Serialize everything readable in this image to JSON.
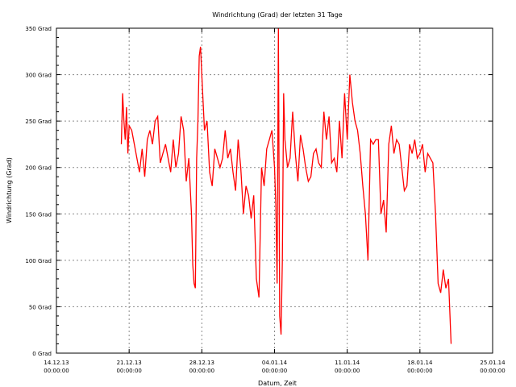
{
  "chart_data": {
    "type": "line",
    "title": "Windrichtung (Grad) der letzten 31 Tage",
    "xlabel": "Datum, Zeit",
    "ylabel": "Windrichtung (Grad)",
    "ylim": [
      0,
      350
    ],
    "xlim": [
      "2013-12-14T00:00",
      "2014-01-25T00:00"
    ],
    "grid": true,
    "yticks": [
      {
        "value": 0,
        "label": "0 Grad"
      },
      {
        "value": 50,
        "label": "50 Grad"
      },
      {
        "value": 100,
        "label": "100 Grad"
      },
      {
        "value": 150,
        "label": "150 Grad"
      },
      {
        "value": 200,
        "label": "200 Grad"
      },
      {
        "value": 250,
        "label": "250 Grad"
      },
      {
        "value": 300,
        "label": "300 Grad"
      },
      {
        "value": 350,
        "label": "350 Grad"
      }
    ],
    "xticks": [
      {
        "value": "2013-12-14T00:00",
        "date": "14.12.13",
        "time": "00:00:00"
      },
      {
        "value": "2013-12-21T00:00",
        "date": "21.12.13",
        "time": "00:00:00"
      },
      {
        "value": "2013-12-28T00:00",
        "date": "28.12.13",
        "time": "00:00:00"
      },
      {
        "value": "2014-01-04T00:00",
        "date": "04.01.14",
        "time": "00:00:00"
      },
      {
        "value": "2014-01-11T00:00",
        "date": "11.01.14",
        "time": "00:00:00"
      },
      {
        "value": "2014-01-18T00:00",
        "date": "18.01.14",
        "time": "00:00:00"
      },
      {
        "value": "2014-01-25T00:00",
        "date": "25.01.14",
        "time": "00:00:00"
      }
    ],
    "series": [
      {
        "color": "#ff0000",
        "x": [
          "2013-12-20T06:00",
          "2013-12-20T09:00",
          "2013-12-20T12:00",
          "2013-12-20T15:00",
          "2013-12-20T18:00",
          "2013-12-20T21:00",
          "2013-12-21T00:00",
          "2013-12-21T06:00",
          "2013-12-21T12:00",
          "2013-12-21T18:00",
          "2013-12-22T00:00",
          "2013-12-22T06:00",
          "2013-12-22T12:00",
          "2013-12-22T18:00",
          "2013-12-23T00:00",
          "2013-12-23T06:00",
          "2013-12-23T12:00",
          "2013-12-23T18:00",
          "2013-12-24T00:00",
          "2013-12-24T06:00",
          "2013-12-24T12:00",
          "2013-12-24T18:00",
          "2013-12-25T00:00",
          "2013-12-25T06:00",
          "2013-12-25T12:00",
          "2013-12-25T18:00",
          "2013-12-26T00:00",
          "2013-12-26T06:00",
          "2013-12-26T12:00",
          "2013-12-26T18:00",
          "2013-12-27T00:00",
          "2013-12-27T03:00",
          "2013-12-27T06:00",
          "2013-12-27T09:00",
          "2013-12-27T12:00",
          "2013-12-27T15:00",
          "2013-12-27T18:00",
          "2013-12-27T21:00",
          "2013-12-28T00:00",
          "2013-12-28T06:00",
          "2013-12-28T12:00",
          "2013-12-28T18:00",
          "2013-12-29T00:00",
          "2013-12-29T06:00",
          "2013-12-29T12:00",
          "2013-12-29T18:00",
          "2013-12-30T00:00",
          "2013-12-30T06:00",
          "2013-12-30T12:00",
          "2013-12-30T18:00",
          "2013-12-31T00:00",
          "2013-12-31T06:00",
          "2013-12-31T12:00",
          "2013-12-31T18:00",
          "2014-01-01T00:00",
          "2014-01-01T06:00",
          "2014-01-01T12:00",
          "2014-01-01T18:00",
          "2014-01-02T00:00",
          "2014-01-02T06:00",
          "2014-01-02T12:00",
          "2014-01-02T18:00",
          "2014-01-03T00:00",
          "2014-01-03T06:00",
          "2014-01-03T12:00",
          "2014-01-03T18:00",
          "2014-01-04T00:00",
          "2014-01-04T03:00",
          "2014-01-04T06:00",
          "2014-01-04T09:00",
          "2014-01-04T12:00",
          "2014-01-04T15:00",
          "2014-01-04T18:00",
          "2014-01-04T21:00",
          "2014-01-05T00:00",
          "2014-01-05T06:00",
          "2014-01-05T12:00",
          "2014-01-05T18:00",
          "2014-01-06T00:00",
          "2014-01-06T06:00",
          "2014-01-06T12:00",
          "2014-01-06T18:00",
          "2014-01-07T00:00",
          "2014-01-07T06:00",
          "2014-01-07T12:00",
          "2014-01-07T18:00",
          "2014-01-08T00:00",
          "2014-01-08T06:00",
          "2014-01-08T12:00",
          "2014-01-08T18:00",
          "2014-01-09T00:00",
          "2014-01-09T06:00",
          "2014-01-09T12:00",
          "2014-01-09T18:00",
          "2014-01-10T00:00",
          "2014-01-10T06:00",
          "2014-01-10T12:00",
          "2014-01-10T18:00",
          "2014-01-11T00:00",
          "2014-01-11T06:00",
          "2014-01-11T12:00",
          "2014-01-11T18:00",
          "2014-01-12T00:00",
          "2014-01-12T06:00",
          "2014-01-12T12:00",
          "2014-01-12T18:00",
          "2014-01-13T00:00",
          "2014-01-13T06:00",
          "2014-01-13T12:00",
          "2014-01-13T18:00",
          "2014-01-14T00:00",
          "2014-01-14T06:00",
          "2014-01-14T12:00",
          "2014-01-14T18:00",
          "2014-01-15T00:00",
          "2014-01-15T06:00",
          "2014-01-15T12:00",
          "2014-01-15T18:00",
          "2014-01-16T00:00",
          "2014-01-16T06:00",
          "2014-01-16T12:00",
          "2014-01-16T18:00",
          "2014-01-17T00:00",
          "2014-01-17T06:00",
          "2014-01-17T12:00",
          "2014-01-17T18:00",
          "2014-01-18T00:00",
          "2014-01-18T06:00",
          "2014-01-18T12:00",
          "2014-01-18T18:00",
          "2014-01-19T00:00",
          "2014-01-19T06:00",
          "2014-01-19T12:00",
          "2014-01-19T18:00",
          "2014-01-20T00:00",
          "2014-01-20T06:00",
          "2014-01-20T12:00",
          "2014-01-20T18:00",
          "2014-01-21T00:00"
        ],
        "y": [
          225,
          280,
          250,
          230,
          265,
          215,
          245,
          240,
          225,
          210,
          195,
          220,
          190,
          230,
          240,
          225,
          250,
          255,
          205,
          215,
          225,
          210,
          195,
          230,
          200,
          215,
          255,
          240,
          185,
          210,
          150,
          95,
          75,
          70,
          210,
          250,
          320,
          330,
          300,
          240,
          250,
          195,
          180,
          220,
          210,
          200,
          210,
          240,
          210,
          220,
          195,
          175,
          230,
          200,
          150,
          180,
          170,
          145,
          170,
          80,
          60,
          200,
          180,
          220,
          230,
          240,
          200,
          160,
          75,
          350,
          40,
          20,
          100,
          280,
          230,
          200,
          210,
          260,
          215,
          185,
          235,
          220,
          200,
          185,
          190,
          215,
          220,
          205,
          200,
          260,
          230,
          255,
          205,
          210,
          195,
          250,
          210,
          280,
          230,
          300,
          270,
          250,
          240,
          215,
          180,
          150,
          100,
          230,
          225,
          230,
          230,
          150,
          165,
          130,
          225,
          245,
          215,
          230,
          225,
          200,
          175,
          180,
          225,
          215,
          230,
          210,
          215,
          225,
          195,
          215,
          210,
          205,
          150,
          75,
          65,
          90,
          70,
          80,
          10
        ]
      }
    ]
  }
}
